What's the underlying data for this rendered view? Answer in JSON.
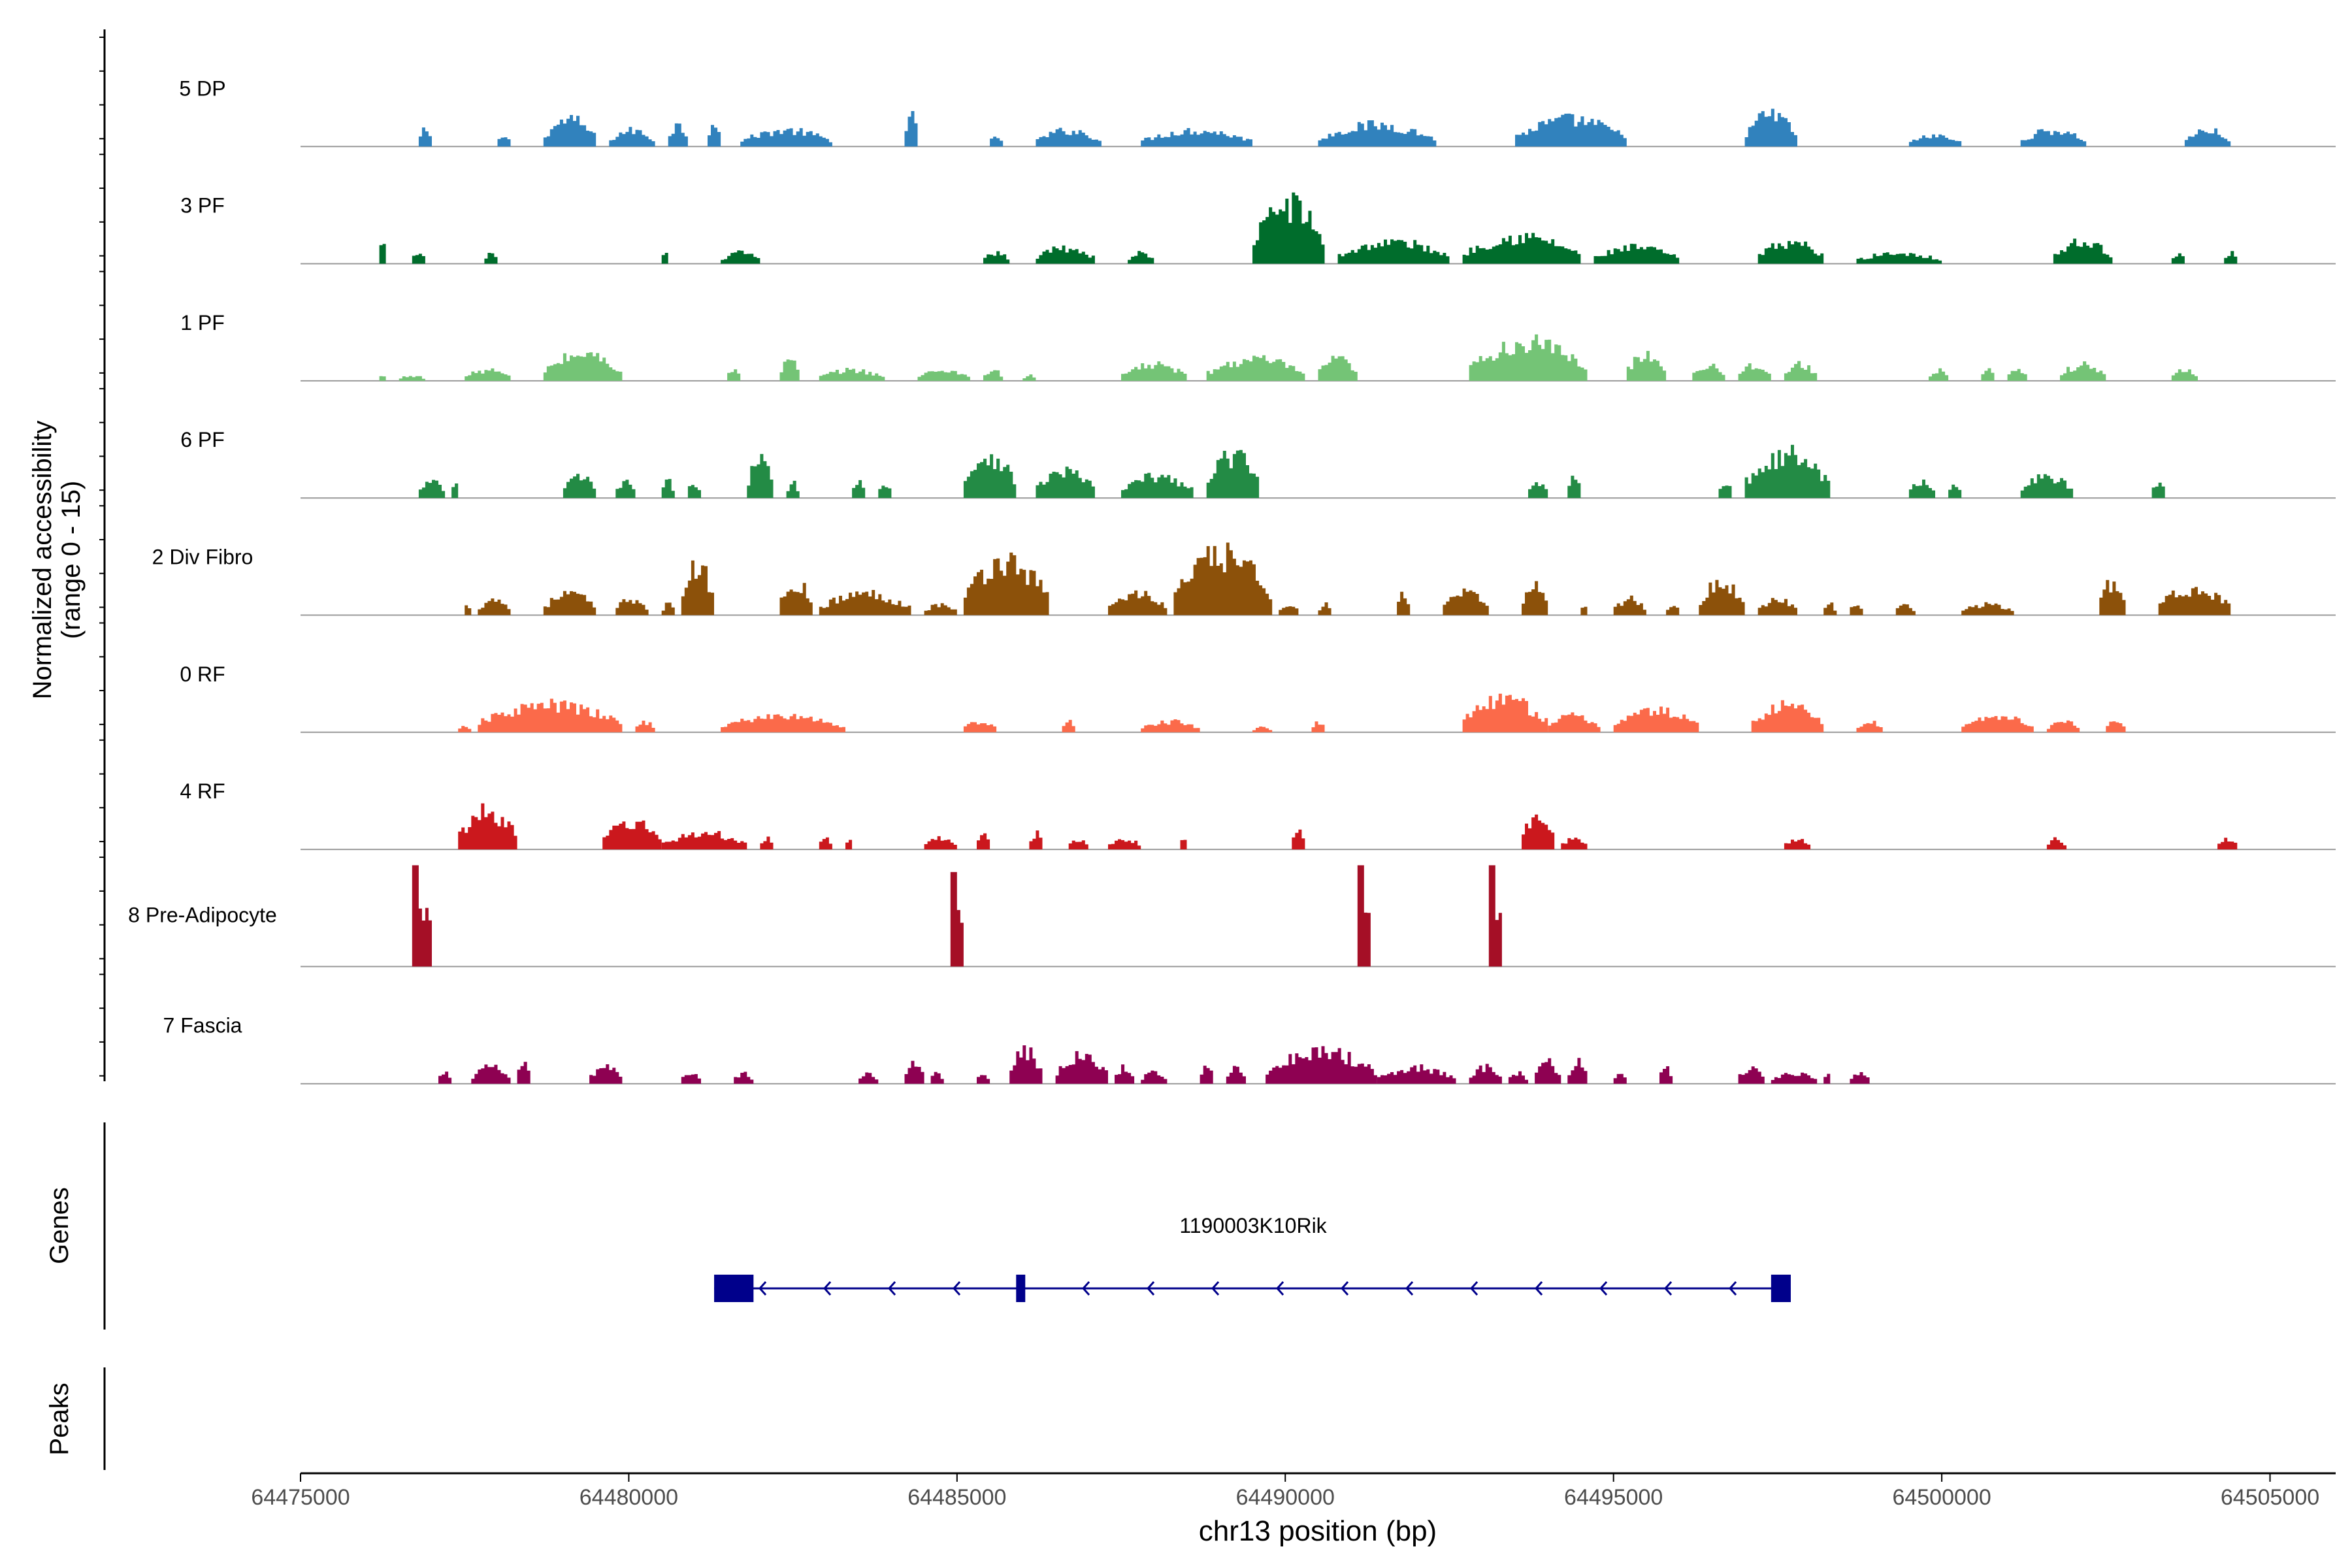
{
  "chart_data": {
    "type": "coverage-track",
    "region": {
      "chrom": "chr13",
      "start": 64475000,
      "end": 64506000
    },
    "xlabel": "chr13 position (bp)",
    "xticks": [
      64475000,
      64480000,
      64485000,
      64490000,
      64495000,
      64500000,
      64505000
    ],
    "xtick_labels": [
      "64475000",
      "64480000",
      "64485000",
      "64490000",
      "64495000",
      "64500000",
      "64505000"
    ],
    "ylabel_line1": "Normalized accessibility",
    "ylabel_line2": "(range 0 - 15)",
    "yrange": [
      0,
      15
    ],
    "tracks": [
      {
        "name": "5 DP",
        "color": "#3182BD",
        "regions": [
          [
            64476800,
            64477000,
            3
          ],
          [
            64478000,
            64478200,
            2
          ],
          [
            64478700,
            64479500,
            5
          ],
          [
            64479700,
            64480400,
            3
          ],
          [
            64480600,
            64480900,
            4
          ],
          [
            64481200,
            64481400,
            5
          ],
          [
            64481700,
            64483100,
            3
          ],
          [
            64484200,
            64484400,
            6
          ],
          [
            64485500,
            64485700,
            2
          ],
          [
            64486200,
            64487200,
            3
          ],
          [
            64487800,
            64489500,
            3
          ],
          [
            64490500,
            64492300,
            4
          ],
          [
            64493500,
            64495200,
            5
          ],
          [
            64497000,
            64497800,
            6
          ],
          [
            64499500,
            64500300,
            2
          ],
          [
            64501200,
            64502200,
            3
          ],
          [
            64503700,
            64504400,
            3
          ]
        ]
      },
      {
        "name": "3 PF",
        "color": "#006D2C",
        "regions": [
          [
            64476200,
            64476300,
            4
          ],
          [
            64476700,
            64476900,
            2
          ],
          [
            64477800,
            64478000,
            2
          ],
          [
            64480500,
            64480600,
            2
          ],
          [
            64481400,
            64482000,
            2
          ],
          [
            64485400,
            64485800,
            2
          ],
          [
            64486200,
            64487100,
            3
          ],
          [
            64487600,
            64488000,
            2
          ],
          [
            64489500,
            64490600,
            11
          ],
          [
            64490800,
            64492500,
            4
          ],
          [
            64492700,
            64494500,
            5
          ],
          [
            64494700,
            64496000,
            3
          ],
          [
            64497200,
            64498200,
            4
          ],
          [
            64498700,
            64500000,
            2
          ],
          [
            64501700,
            64502600,
            4
          ],
          [
            64503500,
            64503700,
            2
          ],
          [
            64504300,
            64504500,
            2
          ]
        ]
      },
      {
        "name": "1 PF",
        "color": "#74C476",
        "regions": [
          [
            64476200,
            64476300,
            1
          ],
          [
            64476500,
            64476900,
            1
          ],
          [
            64477500,
            64478200,
            2
          ],
          [
            64478700,
            64479900,
            5
          ],
          [
            64481500,
            64481700,
            2
          ],
          [
            64482300,
            64482600,
            4
          ],
          [
            64482900,
            64483900,
            2
          ],
          [
            64484400,
            64485200,
            2
          ],
          [
            64485400,
            64485700,
            2
          ],
          [
            64486000,
            64486200,
            1
          ],
          [
            64487500,
            64488500,
            3
          ],
          [
            64488800,
            64490300,
            4
          ],
          [
            64490500,
            64491100,
            4
          ],
          [
            64492800,
            64494600,
            7
          ],
          [
            64495200,
            64495800,
            5
          ],
          [
            64496200,
            64496700,
            3
          ],
          [
            64496900,
            64497400,
            3
          ],
          [
            64497600,
            64498100,
            3
          ],
          [
            64499800,
            64500100,
            2
          ],
          [
            64500600,
            64500800,
            2
          ],
          [
            64501000,
            64501300,
            2
          ],
          [
            64501800,
            64502500,
            3
          ],
          [
            64503500,
            64503900,
            2
          ]
        ]
      },
      {
        "name": "6 PF",
        "color": "#238B45",
        "regions": [
          [
            64476800,
            64477200,
            3
          ],
          [
            64477300,
            64477400,
            3
          ],
          [
            64479000,
            64479500,
            4
          ],
          [
            64479800,
            64480100,
            3
          ],
          [
            64480500,
            64480700,
            3
          ],
          [
            64480900,
            64481100,
            3
          ],
          [
            64481800,
            64482200,
            7
          ],
          [
            64482400,
            64482600,
            3
          ],
          [
            64483400,
            64483600,
            3
          ],
          [
            64483800,
            64484000,
            3
          ],
          [
            64485100,
            64485900,
            8
          ],
          [
            64486200,
            64487100,
            5
          ],
          [
            64487500,
            64488600,
            4
          ],
          [
            64488800,
            64489600,
            8
          ],
          [
            64493700,
            64494000,
            3
          ],
          [
            64494300,
            64494500,
            5
          ],
          [
            64496600,
            64496800,
            3
          ],
          [
            64497000,
            64498300,
            8
          ],
          [
            64499500,
            64499900,
            3
          ],
          [
            64500100,
            64500300,
            3
          ],
          [
            64501200,
            64502000,
            4
          ],
          [
            64503200,
            64503400,
            3
          ]
        ]
      },
      {
        "name": "2 Div Fibro",
        "color": "#8C510A",
        "regions": [
          [
            64477500,
            64477600,
            2
          ],
          [
            64477700,
            64478200,
            3
          ],
          [
            64478700,
            64479500,
            4
          ],
          [
            64479800,
            64480300,
            3
          ],
          [
            64480500,
            64480700,
            2
          ],
          [
            64480800,
            64481300,
            9
          ],
          [
            64482300,
            64482800,
            6
          ],
          [
            64482900,
            64484300,
            4
          ],
          [
            64484500,
            64485000,
            2
          ],
          [
            64485100,
            64486400,
            10
          ],
          [
            64487300,
            64488200,
            4
          ],
          [
            64488300,
            64489800,
            11
          ],
          [
            64489900,
            64490200,
            2
          ],
          [
            64490500,
            64490700,
            2
          ],
          [
            64491700,
            64491900,
            4
          ],
          [
            64492400,
            64493100,
            4
          ],
          [
            64493600,
            64494000,
            6
          ],
          [
            64494500,
            64494600,
            2
          ],
          [
            64495000,
            64495500,
            3
          ],
          [
            64495800,
            64496000,
            2
          ],
          [
            64496300,
            64497000,
            6
          ],
          [
            64497200,
            64497800,
            3
          ],
          [
            64498200,
            64498400,
            2
          ],
          [
            64498600,
            64498800,
            2
          ],
          [
            64499300,
            64499600,
            2
          ],
          [
            64500300,
            64501100,
            2
          ],
          [
            64502400,
            64502800,
            6
          ],
          [
            64503300,
            64504400,
            5
          ]
        ]
      },
      {
        "name": "0 RF",
        "color": "#FB6A4A",
        "regions": [
          [
            64477400,
            64477600,
            1
          ],
          [
            64477700,
            64479900,
            5
          ],
          [
            64480100,
            64480400,
            2
          ],
          [
            64481400,
            64483300,
            3
          ],
          [
            64485100,
            64485600,
            2
          ],
          [
            64486600,
            64486800,
            2
          ],
          [
            64487800,
            64488700,
            2
          ],
          [
            64489500,
            64489800,
            1
          ],
          [
            64490400,
            64490600,
            2
          ],
          [
            64492700,
            64494000,
            6
          ],
          [
            64494000,
            64494800,
            3
          ],
          [
            64495000,
            64496300,
            4
          ],
          [
            64497100,
            64498200,
            5
          ],
          [
            64498700,
            64499100,
            2
          ],
          [
            64500300,
            64501400,
            3
          ],
          [
            64501600,
            64502100,
            2
          ],
          [
            64502500,
            64502800,
            2
          ]
        ]
      },
      {
        "name": "4 RF",
        "color": "#CB181D",
        "regions": [
          [
            64477400,
            64478300,
            7
          ],
          [
            64479600,
            64480500,
            5
          ],
          [
            64480500,
            64481800,
            3
          ],
          [
            64482000,
            64482200,
            2
          ],
          [
            64482900,
            64483100,
            2
          ],
          [
            64483300,
            64483400,
            2
          ],
          [
            64484500,
            64485000,
            2
          ],
          [
            64485300,
            64485500,
            3
          ],
          [
            64486100,
            64486300,
            3
          ],
          [
            64486700,
            64487000,
            2
          ],
          [
            64487300,
            64487800,
            2
          ],
          [
            64488400,
            64488500,
            2
          ],
          [
            64490100,
            64490300,
            4
          ],
          [
            64493600,
            64494100,
            6
          ],
          [
            64494200,
            64494600,
            2
          ],
          [
            64497600,
            64498000,
            2
          ],
          [
            64501600,
            64501900,
            2
          ],
          [
            64504200,
            64504500,
            2
          ]
        ]
      },
      {
        "name": "8 Pre-Adipocyte",
        "color": "#A50F26",
        "regions": [
          [
            64476700,
            64477000,
            15
          ],
          [
            64484900,
            64485100,
            14
          ],
          [
            64491100,
            64491300,
            15
          ],
          [
            64493100,
            64493300,
            15
          ]
        ]
      },
      {
        "name": "7 Fascia",
        "color": "#8E0152",
        "regions": [
          [
            64477100,
            64477300,
            2
          ],
          [
            64477600,
            64478200,
            3
          ],
          [
            64478300,
            64478500,
            4
          ],
          [
            64479400,
            64479900,
            3
          ],
          [
            64480800,
            64481100,
            2
          ],
          [
            64481600,
            64481900,
            2
          ],
          [
            64483500,
            64483800,
            2
          ],
          [
            64484200,
            64484500,
            4
          ],
          [
            64484600,
            64484800,
            2
          ],
          [
            64485300,
            64485500,
            2
          ],
          [
            64485800,
            64486300,
            6
          ],
          [
            64486500,
            64487300,
            5
          ],
          [
            64487400,
            64487700,
            3
          ],
          [
            64487800,
            64488200,
            2
          ],
          [
            64488700,
            64488900,
            4
          ],
          [
            64489100,
            64489400,
            3
          ],
          [
            64489700,
            64491400,
            6
          ],
          [
            64491400,
            64492600,
            3
          ],
          [
            64492800,
            64493300,
            3
          ],
          [
            64493400,
            64493700,
            2
          ],
          [
            64493800,
            64494200,
            4
          ],
          [
            64494300,
            64494600,
            4
          ],
          [
            64495000,
            64495200,
            2
          ],
          [
            64495700,
            64495900,
            3
          ],
          [
            64496900,
            64497300,
            3
          ],
          [
            64497400,
            64498100,
            2
          ],
          [
            64498200,
            64498300,
            2
          ],
          [
            64498600,
            64498900,
            2
          ]
        ]
      }
    ],
    "genes": {
      "label": "Genes",
      "gene": {
        "name": "1190003K10Rik",
        "strand": "-",
        "start": 64481300,
        "end": 64497700,
        "exons": [
          [
            64481300,
            64481900
          ],
          [
            64485900,
            64486000
          ],
          [
            64497400,
            64497700
          ]
        ],
        "color": "#00008B"
      }
    },
    "peaks": {
      "label": "Peaks"
    }
  }
}
